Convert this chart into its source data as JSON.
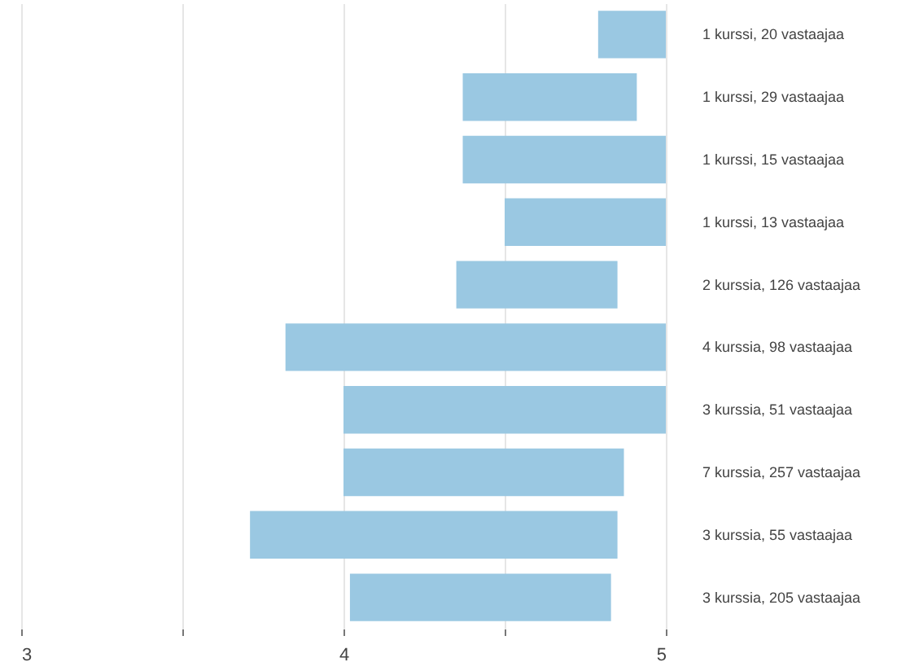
{
  "chart_data": {
    "type": "bar",
    "orientation": "horizontal",
    "categories": [
      "1 kurssi, 20 vastaajaa",
      "1 kurssi, 29 vastaajaa",
      "1 kurssi, 15 vastaajaa",
      "1 kurssi, 13 vastaajaa",
      "2 kurssia, 126 vastaajaa",
      "4 kurssia, 98 vastaajaa",
      "3 kurssia, 51 vastaajaa",
      "7 kurssia, 257 vastaajaa",
      "3 kurssia, 55 vastaajaa",
      "3 kurssia, 205 vastaajaa"
    ],
    "base": [
      4.79,
      4.37,
      4.37,
      4.5,
      4.35,
      3.82,
      4.0,
      4.0,
      3.71,
      4.02
    ],
    "values": [
      0.21,
      0.54,
      0.63,
      0.5,
      0.5,
      1.18,
      1.0,
      0.87,
      1.14,
      0.81
    ],
    "color": "#9ac8e2",
    "xlim": [
      3,
      5
    ],
    "xticks": [
      3,
      {
        "value": 3.5,
        "label": null
      },
      4,
      {
        "value": 4.5,
        "label": null
      },
      5
    ],
    "grid": "x"
  }
}
